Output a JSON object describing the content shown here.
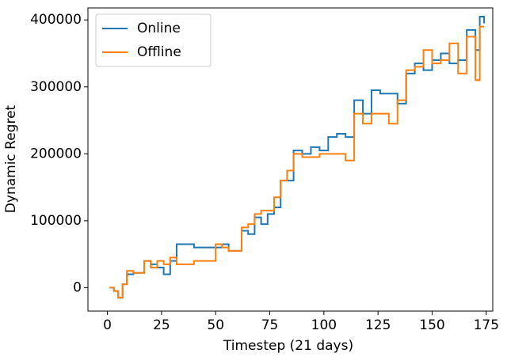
{
  "chart_data": {
    "type": "line",
    "step": "post",
    "x_label": "Timestep (21 days)",
    "y_label": "Dynamic Regret",
    "x": [
      1,
      3,
      5,
      7,
      9,
      12,
      15,
      17,
      20,
      23,
      26,
      29,
      32,
      35,
      40,
      45,
      50,
      53,
      56,
      59,
      62,
      65,
      68,
      71,
      74,
      77,
      80,
      83,
      86,
      90,
      94,
      98,
      102,
      106,
      110,
      114,
      118,
      122,
      126,
      130,
      134,
      138,
      142,
      146,
      150,
      154,
      158,
      162,
      166,
      170,
      172,
      174
    ],
    "series": [
      {
        "name": "Online",
        "color": "#1f77b4",
        "values": [
          0,
          -5000,
          -15000,
          5000,
          20000,
          22000,
          22000,
          40000,
          35000,
          30000,
          20000,
          40000,
          65000,
          65000,
          60000,
          60000,
          60000,
          65000,
          55000,
          55000,
          85000,
          80000,
          105000,
          95000,
          110000,
          120000,
          160000,
          160000,
          205000,
          200000,
          210000,
          205000,
          225000,
          230000,
          225000,
          280000,
          260000,
          295000,
          290000,
          290000,
          275000,
          320000,
          335000,
          325000,
          340000,
          350000,
          335000,
          340000,
          385000,
          355000,
          405000,
          395000
        ]
      },
      {
        "name": "Offline",
        "color": "#ff7f0e",
        "values": [
          0,
          -5000,
          -15000,
          5000,
          25000,
          22000,
          22000,
          40000,
          30000,
          40000,
          35000,
          45000,
          35000,
          35000,
          40000,
          40000,
          65000,
          60000,
          55000,
          55000,
          90000,
          95000,
          110000,
          115000,
          115000,
          135000,
          160000,
          175000,
          200000,
          195000,
          195000,
          200000,
          200000,
          200000,
          190000,
          260000,
          245000,
          260000,
          260000,
          245000,
          280000,
          325000,
          330000,
          355000,
          335000,
          340000,
          365000,
          320000,
          375000,
          310000,
          390000,
          390000
        ]
      }
    ],
    "xlim": [
      -9,
      178
    ],
    "xticks": [
      0,
      25,
      50,
      75,
      100,
      125,
      150,
      175
    ],
    "ylim": [
      -35000,
      418000
    ],
    "yticks": [
      0,
      100000,
      200000,
      300000,
      400000
    ],
    "legend": "upper left"
  }
}
